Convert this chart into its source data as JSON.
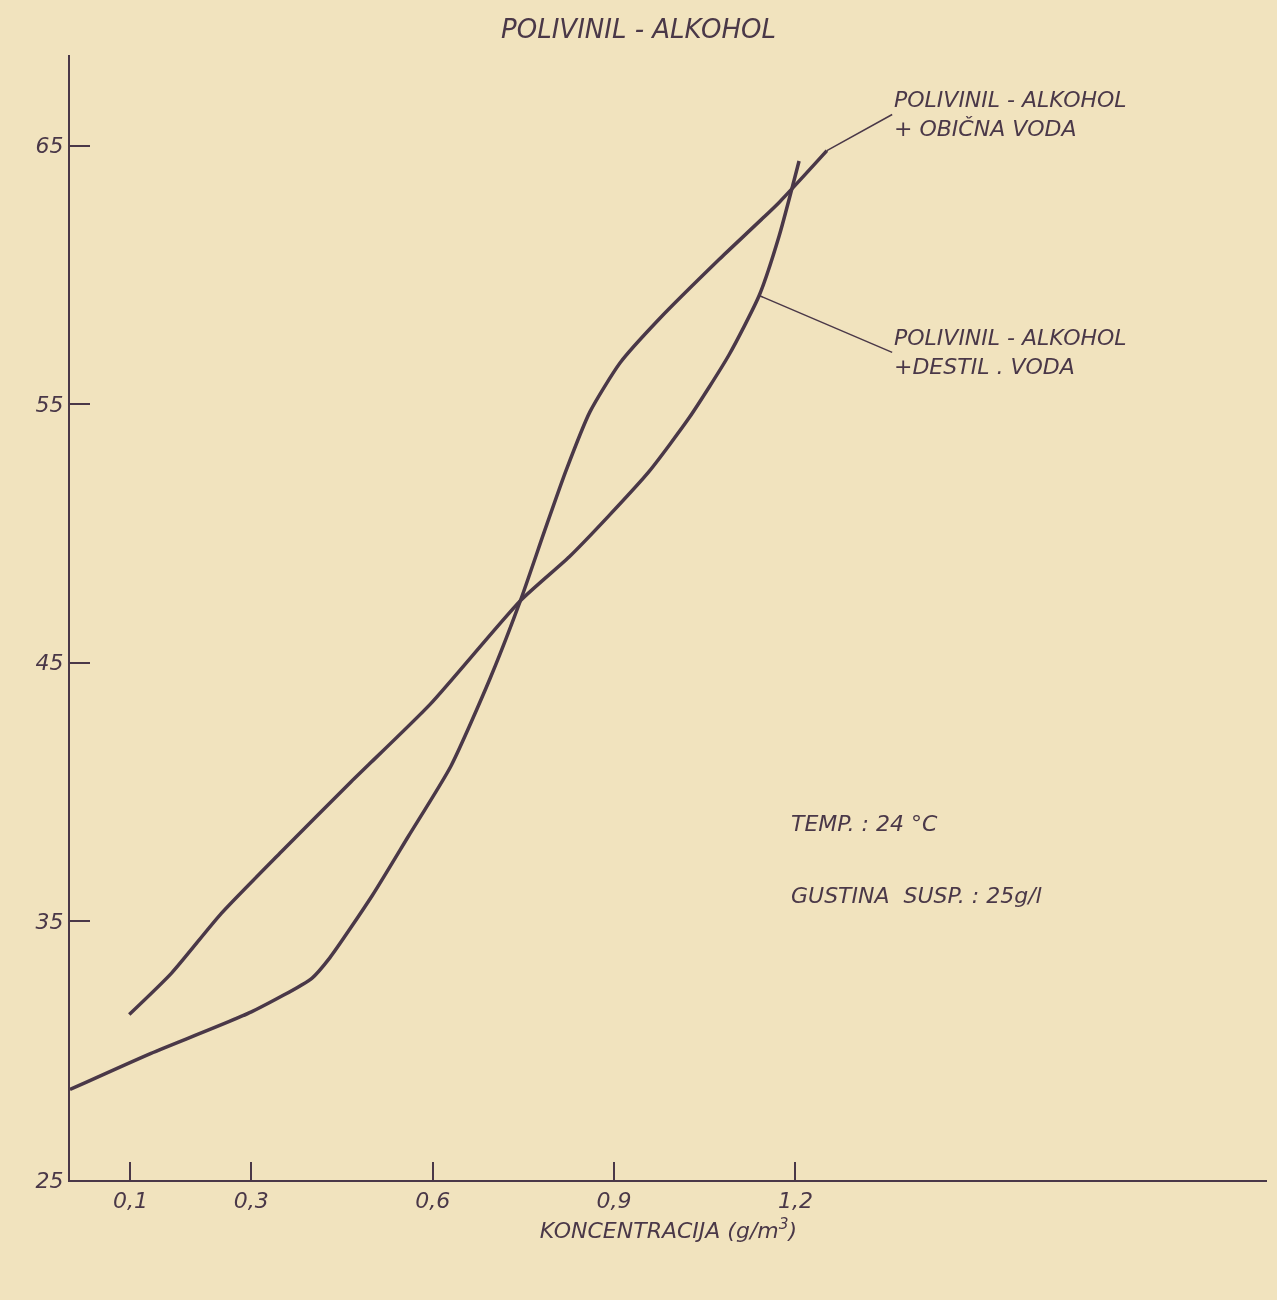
{
  "chart_data": {
    "type": "line",
    "title": "POLIVINIL - ALKOHOL",
    "xlabel": "KONCENTRACIJA (g/m$^{3}$)",
    "xlim": [
      0,
      1.98
    ],
    "xticks": [
      {
        "value": 0.1,
        "label": "0,1"
      },
      {
        "value": 0.3,
        "label": "0,3"
      },
      {
        "value": 0.6,
        "label": "0,6"
      },
      {
        "value": 0.9,
        "label": "0,9"
      },
      {
        "value": 1.2,
        "label": "1,2"
      }
    ],
    "ylim": [
      25,
      68.5
    ],
    "yticks": [
      25,
      35,
      45,
      55,
      65
    ],
    "grid": false,
    "legend": false,
    "marker": "none",
    "line_style": "solid",
    "series": [
      {
        "name": "POLIVINIL - ALKOHOL\n+ OBIČNA VODA",
        "color": "#4a3848",
        "x": [
          0.0,
          0.134,
          0.3,
          0.4,
          0.43,
          0.5,
          0.56,
          0.63,
          0.695,
          0.745,
          0.785,
          0.82,
          0.86,
          0.91,
          0.975,
          1.074,
          1.173,
          1.252
        ],
        "values": [
          28.5,
          29.9,
          31.5,
          32.8,
          33.6,
          36.0,
          38.3,
          41.0,
          44.4,
          47.4,
          50.1,
          52.4,
          54.7,
          56.6,
          58.3,
          60.6,
          62.8,
          64.8
        ]
      },
      {
        "name": "POLIVINIL - ALKOHOL\n+DESTIL . VODA",
        "color": "#4a3848",
        "x": [
          0.098,
          0.168,
          0.25,
          0.35,
          0.465,
          0.596,
          0.745,
          0.826,
          0.892,
          0.958,
          1.025,
          1.09,
          1.14,
          1.173,
          1.206
        ],
        "values": [
          31.4,
          33.0,
          35.3,
          37.7,
          40.4,
          43.4,
          47.4,
          49.1,
          50.7,
          52.4,
          54.5,
          56.9,
          59.2,
          61.5,
          64.4
        ]
      }
    ],
    "annotations": [
      "TEMP. : 24 °C",
      "GUSTINA  SUSP. : 25g/l"
    ]
  }
}
